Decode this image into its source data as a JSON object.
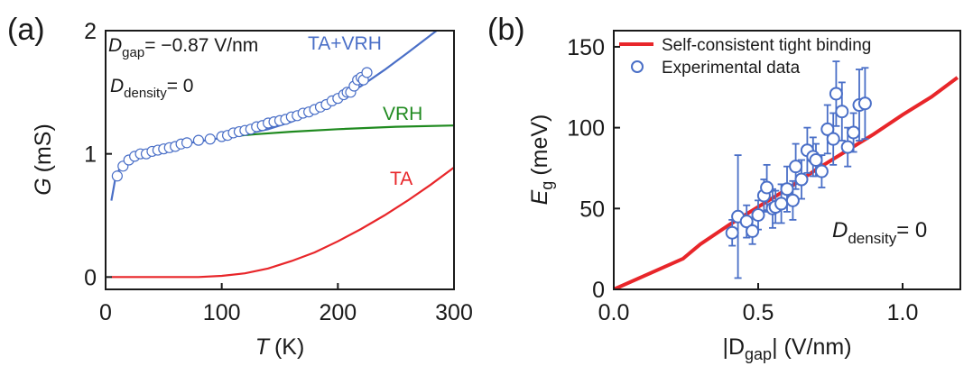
{
  "chart_data": [
    {
      "panel_label": "(a)",
      "type": "line",
      "xlabel": "T",
      "xlabel_unit": "(K)",
      "ylabel": "G",
      "ylabel_unit": "(mS)",
      "xlim": [
        0,
        300
      ],
      "ylim": [
        -0.1,
        2.0
      ],
      "xticks": [
        0,
        100,
        200,
        300
      ],
      "yticks": [
        0,
        1,
        2
      ],
      "grid": false,
      "annotations": {
        "dgap_label": "D",
        "dgap_sub": "gap",
        "dgap_value": "= −0.87 V/nm",
        "ddens_label": "D",
        "ddens_sub": "density",
        "ddens_value": "= 0"
      },
      "series": [
        {
          "name": "TA+VRH",
          "kind": "line",
          "color": "#4a6fc7",
          "x": [
            5,
            8,
            12,
            20,
            30,
            45,
            60,
            80,
            100,
            120,
            140,
            160,
            180,
            200,
            220,
            240,
            260,
            285
          ],
          "y": [
            0.62,
            0.78,
            0.88,
            0.96,
            1.0,
            1.04,
            1.07,
            1.1,
            1.13,
            1.16,
            1.2,
            1.26,
            1.34,
            1.44,
            1.55,
            1.68,
            1.82,
            2.0
          ]
        },
        {
          "name": "VRH",
          "kind": "line",
          "color": "#1f8a1f",
          "x": [
            105,
            130,
            160,
            200,
            250,
            300
          ],
          "y": [
            1.14,
            1.16,
            1.18,
            1.2,
            1.22,
            1.23
          ]
        },
        {
          "name": "TA",
          "kind": "line",
          "color": "#e8262a",
          "x": [
            5,
            50,
            80,
            100,
            120,
            140,
            160,
            180,
            200,
            220,
            240,
            260,
            280,
            300
          ],
          "y": [
            0.0,
            0.0,
            0.0,
            0.01,
            0.03,
            0.07,
            0.13,
            0.2,
            0.29,
            0.39,
            0.5,
            0.62,
            0.75,
            0.89
          ]
        },
        {
          "name": "data",
          "kind": "scatter",
          "color": "#4a6fc7",
          "x": [
            10,
            15,
            20,
            25,
            30,
            35,
            40,
            45,
            50,
            55,
            60,
            65,
            70,
            80,
            90,
            100,
            105,
            110,
            115,
            120,
            125,
            130,
            135,
            140,
            145,
            150,
            155,
            160,
            165,
            170,
            175,
            180,
            185,
            190,
            195,
            200,
            205,
            208,
            211,
            214,
            217,
            220,
            222,
            225
          ],
          "y": [
            0.82,
            0.9,
            0.95,
            0.98,
            1.0,
            1.0,
            1.02,
            1.03,
            1.04,
            1.05,
            1.06,
            1.08,
            1.09,
            1.11,
            1.12,
            1.14,
            1.15,
            1.17,
            1.18,
            1.19,
            1.2,
            1.22,
            1.23,
            1.25,
            1.26,
            1.27,
            1.28,
            1.3,
            1.31,
            1.33,
            1.34,
            1.36,
            1.38,
            1.4,
            1.43,
            1.45,
            1.48,
            1.5,
            1.5,
            1.55,
            1.6,
            1.62,
            1.6,
            1.66
          ]
        }
      ],
      "series_labels": [
        {
          "text": "TA+VRH",
          "color": "#4a6fc7"
        },
        {
          "text": "VRH",
          "color": "#1f8a1f"
        },
        {
          "text": "TA",
          "color": "#e8262a"
        }
      ]
    },
    {
      "panel_label": "(b)",
      "type": "scatter",
      "xlabel": "|D",
      "xlabel_sub": "gap",
      "xlabel_rest": "| (V/nm)",
      "ylabel": "E",
      "ylabel_sub": "g",
      "ylabel_unit": "(meV)",
      "xlim": [
        0.0,
        1.2
      ],
      "ylim": [
        0,
        160
      ],
      "xticks": [
        "0.0",
        "0.5",
        "1.0"
      ],
      "yticks": [
        "0",
        "50",
        "100",
        "150"
      ],
      "grid": false,
      "legend_position": "top-left",
      "legend": [
        {
          "name": "Self-consistent tight binding",
          "kind": "line",
          "color": "#e8262a"
        },
        {
          "name": "Experimental data",
          "kind": "marker",
          "color": "#4a6fc7"
        }
      ],
      "annotations": {
        "ddens_label": "D",
        "ddens_sub": "density",
        "ddens_value": "= 0"
      },
      "line": {
        "color": "#e8262a",
        "x": [
          0.0,
          0.24,
          0.3,
          0.4,
          0.5,
          0.6,
          0.7,
          0.8,
          0.9,
          1.0,
          1.1,
          1.19
        ],
        "y": [
          0,
          19,
          28,
          40,
          51,
          62,
          74,
          85,
          96,
          108,
          119,
          131
        ]
      },
      "points": {
        "color": "#4a6fc7",
        "x": [
          0.41,
          0.43,
          0.46,
          0.48,
          0.5,
          0.52,
          0.53,
          0.55,
          0.56,
          0.58,
          0.6,
          0.62,
          0.63,
          0.65,
          0.67,
          0.69,
          0.7,
          0.72,
          0.74,
          0.76,
          0.77,
          0.79,
          0.81,
          0.83,
          0.85,
          0.87
        ],
        "y": [
          35,
          45,
          42,
          36,
          46,
          58,
          63,
          50,
          51,
          53,
          62,
          55,
          76,
          68,
          86,
          82,
          80,
          73,
          99,
          93,
          121,
          110,
          88,
          97,
          114,
          115
        ],
        "err": [
          8,
          38,
          10,
          8,
          9,
          10,
          14,
          12,
          10,
          12,
          14,
          12,
          14,
          12,
          14,
          12,
          10,
          10,
          15,
          16,
          20,
          18,
          12,
          12,
          22,
          22
        ]
      }
    }
  ]
}
